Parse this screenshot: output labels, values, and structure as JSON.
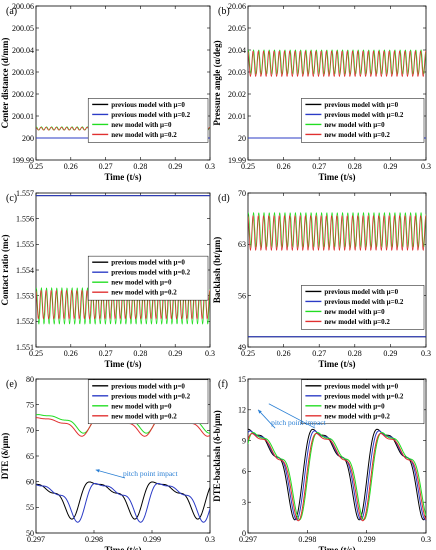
{
  "chart_data": [
    {
      "id": "a",
      "type": "line",
      "panel_label": "(a)",
      "xlabel": "Time (t/s)",
      "ylabel": "Center distance (d/mm)",
      "xlim": [
        0.25,
        0.3
      ],
      "ylim": [
        199.99,
        200.06
      ],
      "xticks": [
        "0.25",
        "0.26",
        "0.27",
        "0.28",
        "0.29",
        "0.3"
      ],
      "yticks": [
        "199.99",
        "200",
        "200.01",
        "200.02",
        "200.03",
        "200.04",
        "200.05",
        "200.06"
      ],
      "legend_position": "lower-right",
      "series": [
        {
          "name": "previous model with μ=0",
          "color": "#000000",
          "shape": "flat",
          "level": 200.0
        },
        {
          "name": "previous model with μ=0.2",
          "color": "#2b3bc6",
          "shape": "flat",
          "level": 200.0
        },
        {
          "name": "new model with μ=0",
          "color": "#22dd22",
          "shape": "oscillation",
          "min": 200.0036,
          "max": 200.0051,
          "cycles": 34
        },
        {
          "name": "new model with μ=0.2",
          "color": "#e03030",
          "shape": "oscillation",
          "min": 200.0036,
          "max": 200.0049,
          "cycles": 34
        }
      ]
    },
    {
      "id": "b",
      "type": "line",
      "panel_label": "(b)",
      "xlabel": "Time (t/s)",
      "ylabel": "Pressure angle (α/deg)",
      "xlim": [
        0.25,
        0.3
      ],
      "ylim": [
        19.99,
        20.06
      ],
      "xticks": [
        "0.25",
        "0.26",
        "0.27",
        "0.28",
        "0.29",
        "0.3"
      ],
      "yticks": [
        "19.99",
        "20",
        "20.01",
        "20.02",
        "20.03",
        "20.04",
        "20.05",
        "20.06"
      ],
      "legend_position": "lower-right",
      "series": [
        {
          "name": "previous model with μ=0",
          "color": "#000000",
          "shape": "flat",
          "level": 20.0
        },
        {
          "name": "previous model with μ=0.2",
          "color": "#2b3bc6",
          "shape": "flat",
          "level": 20.0
        },
        {
          "name": "new model with μ=0",
          "color": "#22dd22",
          "shape": "oscillation",
          "min": 20.029,
          "max": 20.04,
          "cycles": 34
        },
        {
          "name": "new model with μ=0.2",
          "color": "#e03030",
          "shape": "oscillation",
          "min": 20.028,
          "max": 20.0395,
          "cycles": 34
        }
      ]
    },
    {
      "id": "c",
      "type": "line",
      "panel_label": "(c)",
      "xlabel": "Time (t/s)",
      "ylabel": "Contact ratio (mc)",
      "xlim": [
        0.25,
        0.3
      ],
      "ylim": [
        1.551,
        1.557
      ],
      "xticks": [
        "0.25",
        "0.26",
        "0.27",
        "0.28",
        "0.29",
        "0.3"
      ],
      "yticks": [
        "1.551",
        "1.552",
        "1.553",
        "1.554",
        "1.555",
        "1.556",
        "1.557"
      ],
      "legend_position": "middle-right",
      "series": [
        {
          "name": "previous model with μ=0",
          "color": "#000000",
          "shape": "flat",
          "level": 1.5569
        },
        {
          "name": "previous model with μ=0.2",
          "color": "#2b3bc6",
          "shape": "flat",
          "level": 1.5569
        },
        {
          "name": "new model with μ=0",
          "color": "#22dd22",
          "shape": "oscillation",
          "min": 1.5519,
          "max": 1.5533,
          "cycles": 34
        },
        {
          "name": "new model with μ=0.2",
          "color": "#e03030",
          "shape": "oscillation",
          "min": 1.5521,
          "max": 1.5532,
          "cycles": 34
        }
      ]
    },
    {
      "id": "d",
      "type": "line",
      "panel_label": "(d)",
      "xlabel": "Time (t/s)",
      "ylabel": "Backlash (bt/μm)",
      "xlim": [
        0.25,
        0.3
      ],
      "ylim": [
        49,
        70
      ],
      "xticks": [
        "0.25",
        "0.26",
        "0.27",
        "0.28",
        "0.29",
        "0.3"
      ],
      "yticks": [
        "49",
        "56",
        "63",
        "70"
      ],
      "legend_position": "lower-right",
      "series": [
        {
          "name": "previous model with μ=0",
          "color": "#000000",
          "shape": "flat",
          "level": 50.4
        },
        {
          "name": "previous model with μ=0.2",
          "color": "#2b3bc6",
          "shape": "flat",
          "level": 50.4
        },
        {
          "name": "new model with μ=0",
          "color": "#22dd22",
          "shape": "oscillation",
          "min": 62.6,
          "max": 67.3,
          "cycles": 34
        },
        {
          "name": "new model with μ=0.2",
          "color": "#e03030",
          "shape": "oscillation",
          "min": 62.2,
          "max": 66.9,
          "cycles": 34
        }
      ]
    },
    {
      "id": "e",
      "type": "line",
      "panel_label": "(e)",
      "xlabel": "Time (t/s)",
      "ylabel": "DTE (δ/μm)",
      "xlim": [
        0.297,
        0.3
      ],
      "ylim": [
        50,
        80
      ],
      "xticks": [
        "0.297",
        "0.298",
        "0.299",
        "0.3"
      ],
      "yticks": [
        "50",
        "55",
        "60",
        "65",
        "70",
        "75",
        "80"
      ],
      "legend_position": "top-right",
      "annotation": {
        "text": "pitch point impact",
        "arrow_to": [
          0.29803,
          62.3
        ]
      },
      "series": [
        {
          "name": "previous model with μ=0",
          "color": "#000000",
          "shape": "dte",
          "mean": 57.4,
          "amp": 4.6,
          "period": 0.001085,
          "phase": 0.00025
        },
        {
          "name": "previous model with μ=0.2",
          "color": "#2b3bc6",
          "shape": "dte",
          "mean": 57.0,
          "amp": 4.8,
          "period": 0.001085,
          "phase": 0.00015
        },
        {
          "name": "new model with μ=0",
          "color": "#22dd22",
          "shape": "dte",
          "mean": 71.8,
          "amp": 2.3,
          "period": 0.001085,
          "phase": 5e-05
        },
        {
          "name": "new model with μ=0.2",
          "color": "#e03030",
          "shape": "dte",
          "mean": 71.2,
          "amp": 2.3,
          "period": 0.001085,
          "phase": 8e-05
        }
      ]
    },
    {
      "id": "f",
      "type": "line",
      "panel_label": "(f)",
      "xlabel": "Time (t/s)",
      "ylabel": "DTE-backlash (δ-b/μm)",
      "xlim": [
        0.297,
        0.3
      ],
      "ylim": [
        0,
        15
      ],
      "xticks": [
        "0.297",
        "0.298",
        "0.299",
        "0.3"
      ],
      "yticks": [
        "0",
        "3",
        "6",
        "9",
        "12",
        "15"
      ],
      "legend_position": "top-right",
      "annotation": {
        "text": "pitch point impact",
        "arrow_to": [
          0.29717,
          12.0
        ]
      },
      "series": [
        {
          "name": "previous model with μ=0",
          "color": "#000000",
          "shape": "dte",
          "mean": 7.0,
          "amp": 5.6,
          "period": 0.001085,
          "phase": 8e-05
        },
        {
          "name": "previous model with μ=0.2",
          "color": "#2b3bc6",
          "shape": "dte",
          "mean": 6.9,
          "amp": 5.5,
          "period": 0.001085,
          "phase": 5e-05
        },
        {
          "name": "new model with μ=0",
          "color": "#22dd22",
          "shape": "dte",
          "mean": 6.8,
          "amp": 5.4,
          "period": 0.001085,
          "phase": 0.0
        },
        {
          "name": "new model with μ=0.2",
          "color": "#e03030",
          "shape": "dte",
          "mean": 6.7,
          "amp": 5.4,
          "period": 0.001085,
          "phase": 2e-05
        }
      ]
    }
  ]
}
